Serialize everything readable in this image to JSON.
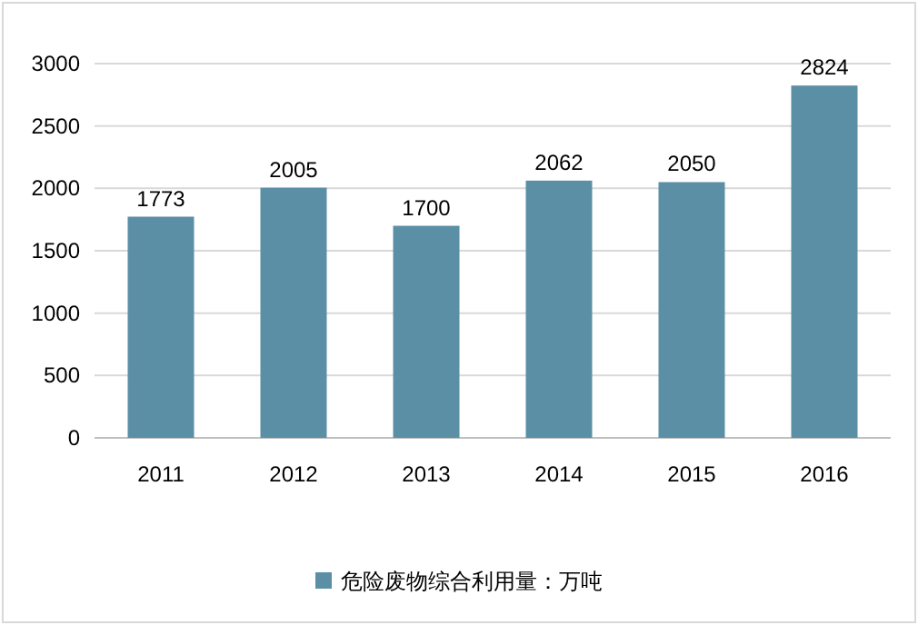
{
  "chart_data": {
    "type": "bar",
    "categories": [
      "2011",
      "2012",
      "2013",
      "2014",
      "2015",
      "2016"
    ],
    "series": [
      {
        "name": "危险废物综合利用量：万吨",
        "color": "#5b8fa6",
        "values": [
          1773,
          2005,
          1700,
          2062,
          2050,
          2824
        ]
      }
    ],
    "ylim": [
      0,
      3000
    ],
    "yticks": [
      0,
      500,
      1000,
      1500,
      2000,
      2500,
      3000
    ],
    "grid": "y",
    "legend": "bottom",
    "data_labels": true
  }
}
